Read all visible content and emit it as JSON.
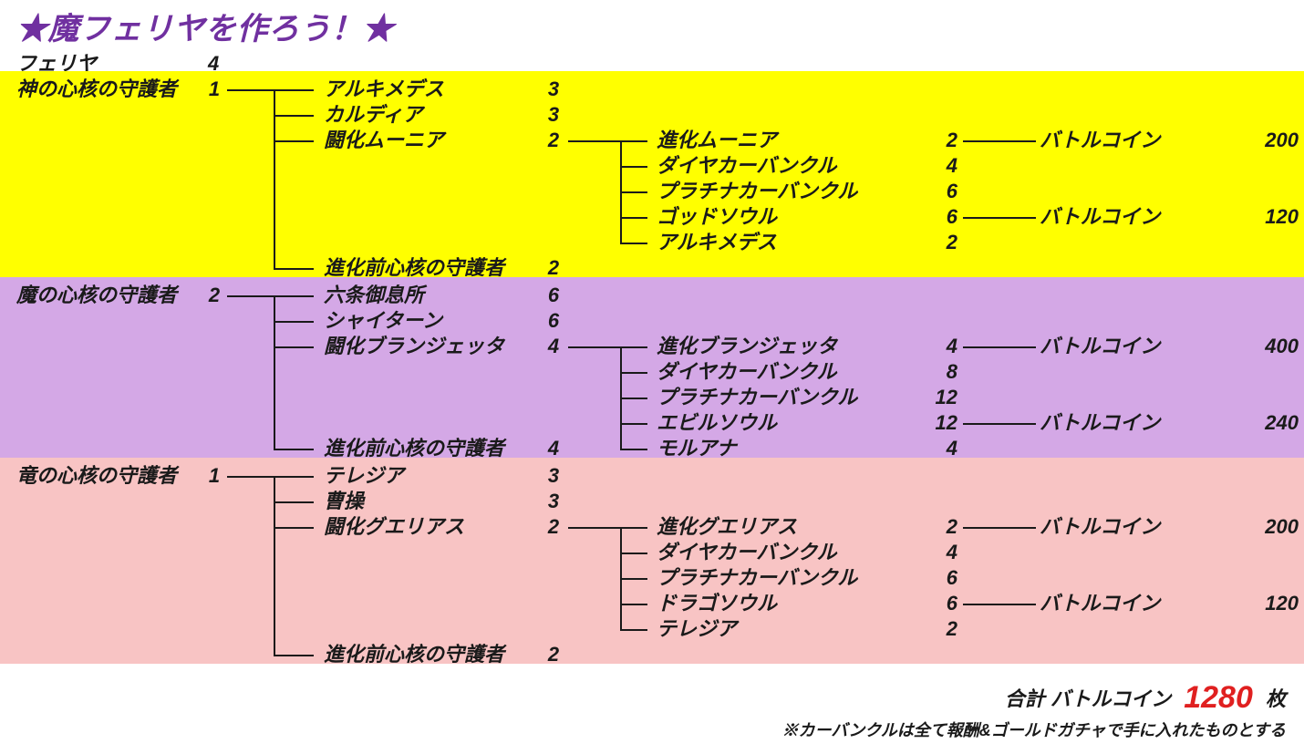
{
  "page": {
    "title_color": "#7030a0",
    "total_num_color": "#e02020"
  },
  "title": "★魔フェリヤを作ろう！★",
  "header": {
    "label": "フェリヤ",
    "qty": "4"
  },
  "sections": [
    {
      "bg": "#ffff00",
      "root": {
        "name": "神の心核の守護者",
        "qty": "1"
      },
      "level2": [
        {
          "name": "アルキメデス",
          "qty": "3"
        },
        {
          "name": "カルディア",
          "qty": "3"
        },
        {
          "name": "闘化ムーニア",
          "qty": "2"
        },
        {
          "name": "進化前心核の守護者",
          "qty": "2"
        }
      ],
      "level3": [
        {
          "name": "進化ムーニア",
          "qty": "2",
          "coin_label": "バトルコイン",
          "coin": "200"
        },
        {
          "name": "ダイヤカーバンクル",
          "qty": "4"
        },
        {
          "name": "プラチナカーバンクル",
          "qty": "6"
        },
        {
          "name": "ゴッドソウル",
          "qty": "6",
          "coin_label": "バトルコイン",
          "coin": "120"
        },
        {
          "name": "アルキメデス",
          "qty": "2"
        }
      ]
    },
    {
      "bg": "#d4a8e6",
      "root": {
        "name": "魔の心核の守護者",
        "qty": "2"
      },
      "level2": [
        {
          "name": "六条御息所",
          "qty": "6"
        },
        {
          "name": "シャイターン",
          "qty": "6"
        },
        {
          "name": "闘化ブランジェッタ",
          "qty": "4"
        },
        {
          "name": "進化前心核の守護者",
          "qty": "4"
        }
      ],
      "level3": [
        {
          "name": "進化ブランジェッタ",
          "qty": "4",
          "coin_label": "バトルコイン",
          "coin": "400"
        },
        {
          "name": "ダイヤカーバンクル",
          "qty": "8"
        },
        {
          "name": "プラチナカーバンクル",
          "qty": "12"
        },
        {
          "name": "エビルソウル",
          "qty": "12",
          "coin_label": "バトルコイン",
          "coin": "240"
        },
        {
          "name": "モルアナ",
          "qty": "4"
        }
      ]
    },
    {
      "bg": "#f8c4c4",
      "root": {
        "name": "竜の心核の守護者",
        "qty": "1"
      },
      "level2": [
        {
          "name": "テレジア",
          "qty": "3"
        },
        {
          "name": "曹操",
          "qty": "3"
        },
        {
          "name": "闘化グエリアス",
          "qty": "2"
        },
        {
          "name": "進化前心核の守護者",
          "qty": "2"
        }
      ],
      "level3": [
        {
          "name": "進化グエリアス",
          "qty": "2",
          "coin_label": "バトルコイン",
          "coin": "200"
        },
        {
          "name": "ダイヤカーバンクル",
          "qty": "4"
        },
        {
          "name": "プラチナカーバンクル",
          "qty": "6"
        },
        {
          "name": "ドラゴソウル",
          "qty": "6",
          "coin_label": "バトルコイン",
          "coin": "120"
        },
        {
          "name": "テレジア",
          "qty": "2"
        }
      ]
    }
  ],
  "total": {
    "label": "合計 バトルコイン",
    "value": "1280",
    "unit": "枚"
  },
  "footnote": "※カーバンクルは全て報酬&ゴールドガチャで手に入れたものとする"
}
